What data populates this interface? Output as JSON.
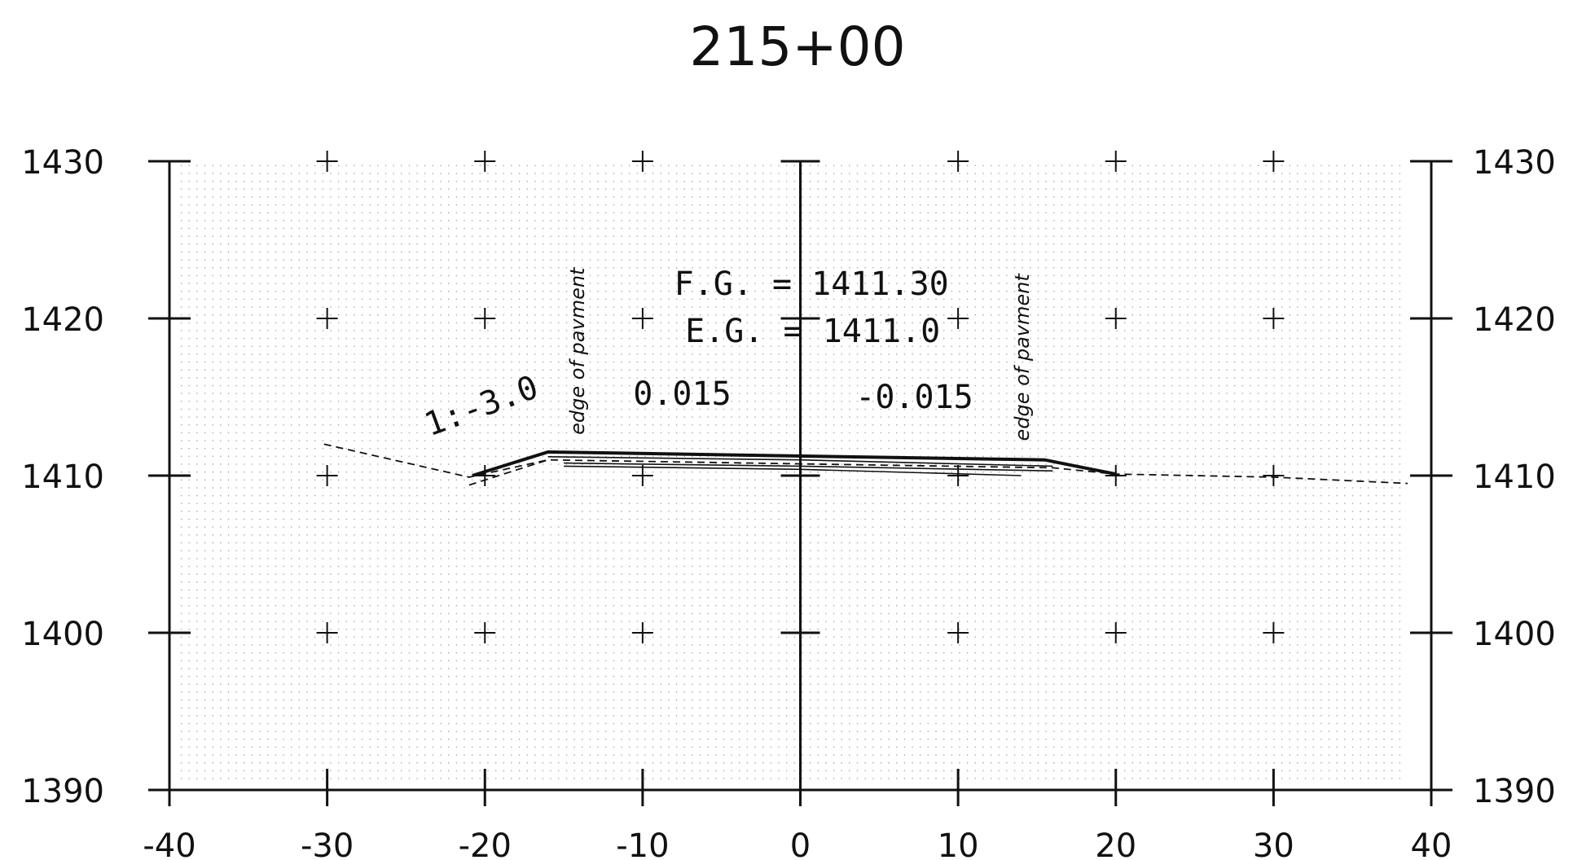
{
  "chart_data": {
    "type": "line",
    "title": "215+00",
    "xlabel": "",
    "ylabel": "",
    "xlim": [
      -40,
      40
    ],
    "ylim": [
      1390,
      1430
    ],
    "x_ticks": [
      "-40",
      "-30",
      "-20",
      "-10",
      "0",
      "10",
      "20",
      "30",
      "40"
    ],
    "y_ticks_left": [
      "1430",
      "1420",
      "1410",
      "1400",
      "1390"
    ],
    "y_ticks_right": [
      "1430",
      "1420",
      "1410",
      "1400",
      "1390"
    ],
    "grid": "dotted",
    "colors": {
      "ink": "#111111",
      "grid_dots": "#9a9a9a",
      "background": "#ffffff"
    },
    "series": [
      {
        "style": "dashed",
        "points": [
          [
            -30.2,
            1412.0
          ],
          [
            -21.0,
            1409.9
          ],
          [
            -16.0,
            1411.0
          ],
          [
            16.0,
            1410.5
          ],
          [
            20.0,
            1410.1
          ],
          [
            30.0,
            1409.9
          ],
          [
            38.5,
            1409.5
          ]
        ]
      },
      {
        "style": "solid-heavy",
        "points": [
          [
            -20.8,
            1410.0
          ],
          [
            -16.0,
            1411.5
          ],
          [
            15.5,
            1411.0
          ],
          [
            18.0,
            1410.5
          ],
          [
            20.0,
            1410.1
          ]
        ]
      },
      {
        "style": "solid",
        "points": [
          [
            -16.0,
            1411.2
          ],
          [
            0.0,
            1411.0
          ],
          [
            16.0,
            1410.6
          ]
        ]
      },
      {
        "style": "solid",
        "points": [
          [
            -15.0,
            1410.8
          ],
          [
            0.0,
            1410.6
          ],
          [
            16.0,
            1410.3
          ]
        ]
      },
      {
        "style": "solid",
        "points": [
          [
            -15.0,
            1410.6
          ],
          [
            0.0,
            1410.4
          ],
          [
            14.0,
            1410.0
          ]
        ]
      },
      {
        "style": "dashed",
        "points": [
          [
            -21.0,
            1409.4
          ],
          [
            -16.0,
            1411.0
          ]
        ]
      }
    ],
    "annotations": [
      {
        "text": "F.G.  =  1411.30",
        "x": -8.0,
        "y": 1421.5,
        "rotate": 0,
        "kind": "label"
      },
      {
        "text": "E.G.  =  1411.0",
        "x": -7.3,
        "y": 1418.5,
        "rotate": 0,
        "kind": "label"
      },
      {
        "text": "1:-3.0",
        "x": -23.5,
        "y": 1412.5,
        "rotate": -20,
        "kind": "label"
      },
      {
        "text": "0.015",
        "x": -10.6,
        "y": 1414.5,
        "rotate": 0,
        "kind": "label"
      },
      {
        "text": "-0.015",
        "x": 3.5,
        "y": 1414.3,
        "rotate": 0,
        "kind": "label"
      },
      {
        "text": "edge of pavment",
        "x": -13.7,
        "y": 1412.6,
        "rotate": -90,
        "kind": "italic"
      },
      {
        "text": "edge of pavment",
        "x": 14.5,
        "y": 1412.2,
        "rotate": -90,
        "kind": "italic"
      }
    ]
  }
}
